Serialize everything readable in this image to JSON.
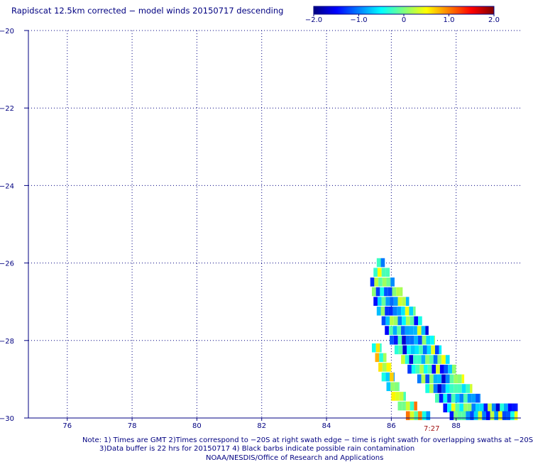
{
  "title": "Rapidscat 12.5km corrected − model winds 20150717 descending",
  "colorbar": {
    "min": -2.0,
    "max": 2.0,
    "ticks": [
      {
        "value": -2.0,
        "label": "−2.0"
      },
      {
        "value": -1.0,
        "label": "−1.0"
      },
      {
        "value": 0,
        "label": "0"
      },
      {
        "value": 1.0,
        "label": "1.0"
      },
      {
        "value": 2.0,
        "label": "2.0"
      }
    ],
    "colors": [
      "#00007f",
      "#0000ff",
      "#007fff",
      "#00ffff",
      "#7fff7f",
      "#ffff00",
      "#ff7f00",
      "#ff0000",
      "#7f0000"
    ]
  },
  "notes": {
    "line1": "Note: 1) Times are GMT 2)Times correspond to −20S at right swath edge − time is right swath for overlapping swaths at −20S",
    "line2": "3)Data buffer is 22 hrs for 20150717 4) Black barbs indicate possible rain contamination",
    "line3": "NOAA/NESDIS/Office of Research and Applications"
  },
  "time_label": "7:27",
  "chart_data": {
    "type": "heatmap",
    "title": "Rapidscat 12.5km corrected − model winds 20150717 descending",
    "xlabel": "",
    "ylabel": "",
    "xlim": [
      74.8,
      90.0
    ],
    "ylim": [
      -30,
      -20
    ],
    "grid": true,
    "x_ticks": [
      76,
      78,
      80,
      82,
      84,
      86,
      88
    ],
    "x_tick_labels": [
      "76",
      "78",
      "80",
      "82",
      "84",
      "86",
      "88"
    ],
    "y_ticks": [
      -20,
      -22,
      -24,
      -26,
      -28,
      -30
    ],
    "y_tick_labels": [
      "−20",
      "−22",
      "−24",
      "−26",
      "−28",
      "−30"
    ],
    "value_range": [
      -2.0,
      2.0
    ],
    "cell_size_deg": 0.125,
    "swaths": [
      {
        "rows": [
          {
            "lat": -26.0,
            "lon_start": 85.55,
            "lon_end": 85.8
          },
          {
            "lat": -26.25,
            "lon_start": 85.45,
            "lon_end": 85.95
          },
          {
            "lat": -26.5,
            "lon_start": 85.35,
            "lon_end": 86.1
          },
          {
            "lat": -26.75,
            "lon_start": 85.4,
            "lon_end": 86.35
          },
          {
            "lat": -27.0,
            "lon_start": 85.45,
            "lon_end": 86.55
          },
          {
            "lat": -27.25,
            "lon_start": 85.55,
            "lon_end": 86.75
          },
          {
            "lat": -27.5,
            "lon_start": 85.7,
            "lon_end": 86.95
          },
          {
            "lat": -27.75,
            "lon_start": 85.8,
            "lon_end": 87.15
          },
          {
            "lat": -28.0,
            "lon_start": 85.95,
            "lon_end": 87.35
          },
          {
            "lat": -28.25,
            "lon_start": 86.1,
            "lon_end": 87.55
          },
          {
            "lat": -28.5,
            "lon_start": 86.3,
            "lon_end": 87.8
          },
          {
            "lat": -28.75,
            "lon_start": 86.5,
            "lon_end": 88.0
          },
          {
            "lat": -29.0,
            "lon_start": 86.8,
            "lon_end": 88.25
          },
          {
            "lat": -29.25,
            "lon_start": 87.05,
            "lon_end": 88.5
          },
          {
            "lat": -29.5,
            "lon_start": 87.35,
            "lon_end": 88.75
          },
          {
            "lat": -29.75,
            "lon_start": 87.6,
            "lon_end": 89.9
          },
          {
            "lat": -29.95,
            "lon_start": 87.8,
            "lon_end": 89.9
          }
        ],
        "mean_value": -0.6
      },
      {
        "rows": [
          {
            "lat": -28.2,
            "lon_start": 85.4,
            "lon_end": 85.7
          },
          {
            "lat": -28.45,
            "lon_start": 85.5,
            "lon_end": 85.85
          },
          {
            "lat": -28.7,
            "lon_start": 85.6,
            "lon_end": 86.0
          },
          {
            "lat": -28.95,
            "lon_start": 85.7,
            "lon_end": 86.1
          },
          {
            "lat": -29.2,
            "lon_start": 85.85,
            "lon_end": 86.25
          },
          {
            "lat": -29.45,
            "lon_start": 86.0,
            "lon_end": 86.45
          },
          {
            "lat": -29.7,
            "lon_start": 86.2,
            "lon_end": 86.8
          },
          {
            "lat": -29.95,
            "lon_start": 86.45,
            "lon_end": 87.2
          }
        ],
        "mean_value": 0.1
      }
    ],
    "annotations": [
      {
        "text": "7:27",
        "lon": 87.4,
        "lat": -30.3
      }
    ]
  }
}
